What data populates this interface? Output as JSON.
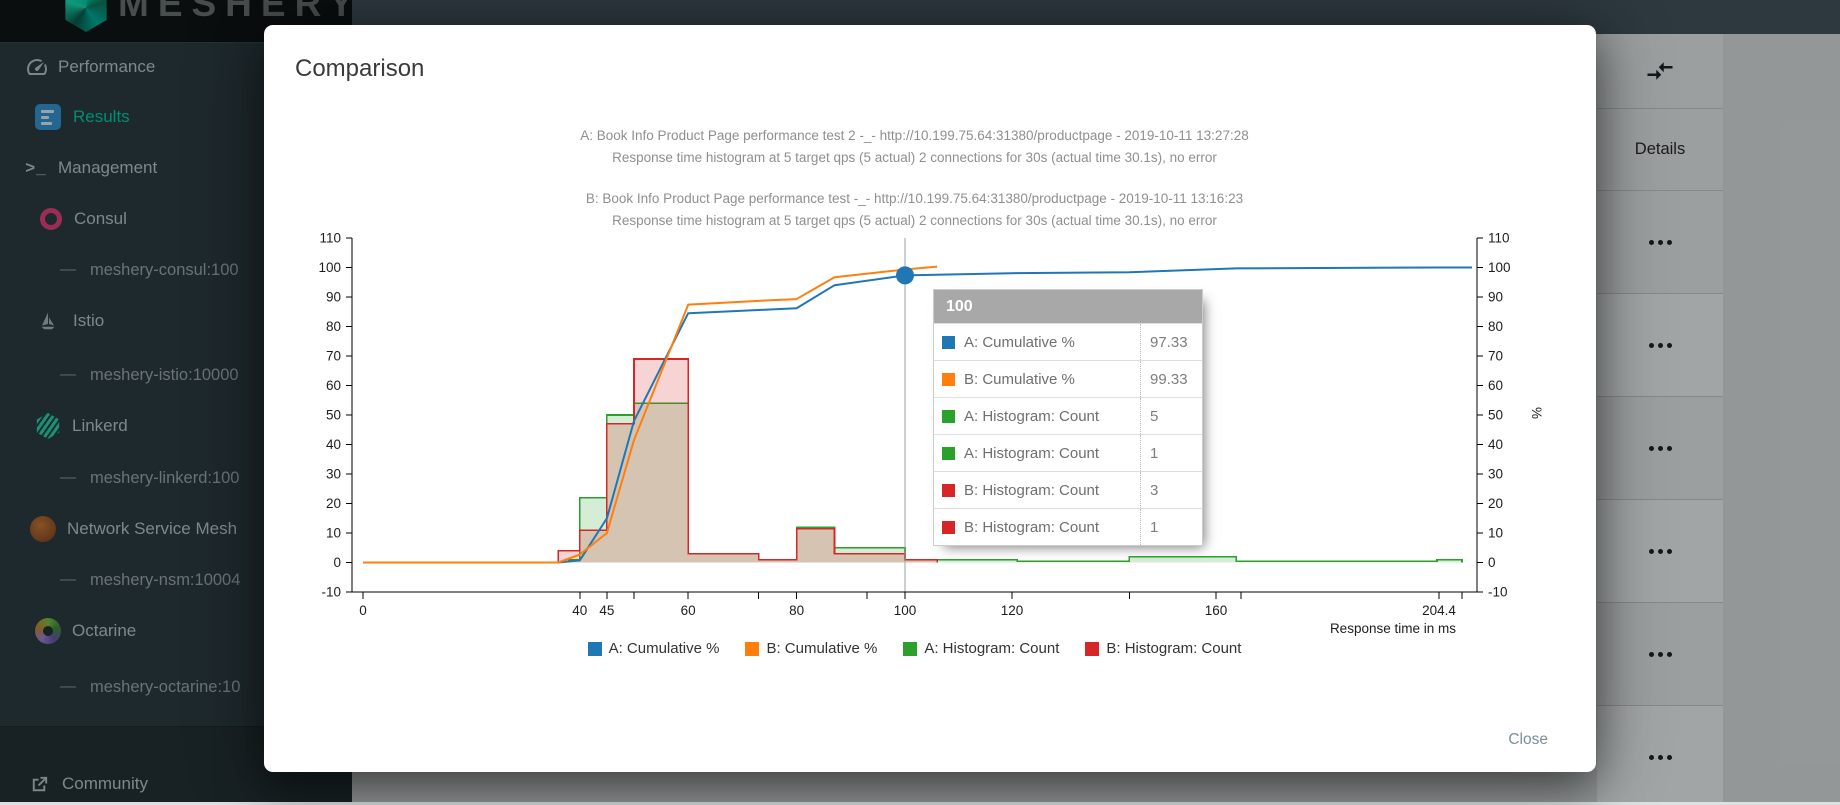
{
  "app": {
    "logo_text": "MESHERY"
  },
  "sidebar": {
    "items": [
      {
        "label": "Performance",
        "icon": "gauge-icon",
        "level": 0,
        "active": false
      },
      {
        "label": "Results",
        "icon": "results-icon",
        "level": 1,
        "active": true
      },
      {
        "label": "Management",
        "icon": "terminal-icon",
        "level": 0,
        "active": false
      },
      {
        "label": "Consul",
        "icon": "consul-icon",
        "level": 0,
        "active": false
      },
      {
        "label": "meshery-consul:100",
        "icon": "dash",
        "level": 1,
        "active": false
      },
      {
        "label": "Istio",
        "icon": "istio-sailboat-icon",
        "level": 0,
        "active": false
      },
      {
        "label": "meshery-istio:10000",
        "icon": "dash",
        "level": 1,
        "active": false
      },
      {
        "label": "Linkerd",
        "icon": "linkerd-icon",
        "level": 0,
        "active": false
      },
      {
        "label": "meshery-linkerd:100",
        "icon": "dash",
        "level": 1,
        "active": false
      },
      {
        "label": "Network Service Mesh",
        "icon": "nsm-icon",
        "level": 0,
        "active": false
      },
      {
        "label": "meshery-nsm:10004",
        "icon": "dash",
        "level": 1,
        "active": false
      },
      {
        "label": "Octarine",
        "icon": "octarine-icon",
        "level": 0,
        "active": false
      },
      {
        "label": "meshery-octarine:10",
        "icon": "dash",
        "level": 1,
        "active": false
      }
    ],
    "footer": {
      "label": "Community",
      "icon": "external-link-icon"
    },
    "terminal_glyph": ">_"
  },
  "table": {
    "details_header": "Details",
    "visible_rows": 6
  },
  "modal": {
    "title": "Comparison",
    "close_label": "Close"
  },
  "chart_data": {
    "type": "combo",
    "titles": [
      "A: Book Info Product Page performance test 2 -_- http://10.199.75.64:31380/productpage - 2019-10-11 13:27:28",
      "Response time histogram at 5 target qps (5 actual) 2 connections for 30s (actual time 30.1s), no error",
      "B: Book Info Product Page performance test -_- http://10.199.75.64:31380/productpage - 2019-10-11 13:16:23",
      "Response time histogram at 5 target qps (5 actual) 2 connections for 30s (actual time 30.1s), no error"
    ],
    "xlabel": "Response time in ms",
    "ylabel_right": "%",
    "y_ticks": [
      -10,
      0,
      10,
      20,
      30,
      40,
      50,
      60,
      70,
      80,
      90,
      100,
      110
    ],
    "ylim": [
      -10,
      110
    ],
    "x_ticks_labeled": [
      0,
      40,
      45,
      60,
      80,
      100,
      120,
      160,
      204.4
    ],
    "x_ticks_unlabeled": [
      50,
      73,
      93,
      143,
      165,
      209
    ],
    "xlim": [
      0,
      212
    ],
    "grid": false,
    "crosshair_x": 100,
    "marker": {
      "series": "A: Cumulative %",
      "x": 100,
      "y": 97.33
    },
    "series": [
      {
        "name": "A: Cumulative %",
        "type": "line",
        "color": "#1f77b4",
        "points": [
          [
            0,
            0
          ],
          [
            36,
            0
          ],
          [
            40,
            0.7
          ],
          [
            45,
            15
          ],
          [
            50,
            48
          ],
          [
            60,
            84.5
          ],
          [
            73,
            85.6
          ],
          [
            80,
            86.2
          ],
          [
            87,
            94
          ],
          [
            100,
            97.33
          ],
          [
            121,
            98.1
          ],
          [
            143,
            98.4
          ],
          [
            164,
            99.7
          ],
          [
            204.4,
            100
          ],
          [
            211,
            100
          ]
        ]
      },
      {
        "name": "B: Cumulative %",
        "type": "line",
        "color": "#ff7f0e",
        "points": [
          [
            0,
            0
          ],
          [
            36,
            0
          ],
          [
            40,
            2.7
          ],
          [
            45,
            10
          ],
          [
            50,
            41.5
          ],
          [
            60,
            87.4
          ],
          [
            73,
            88.7
          ],
          [
            80,
            89.3
          ],
          [
            87,
            96.7
          ],
          [
            100,
            99.33
          ],
          [
            106,
            100.3
          ]
        ]
      },
      {
        "name": "A: Histogram: Count",
        "type": "step-area",
        "color": "#2ca02c",
        "bins": [
          {
            "from": 38,
            "to": 40,
            "count": 1
          },
          {
            "from": 40,
            "to": 45,
            "count": 22
          },
          {
            "from": 45,
            "to": 50,
            "count": 50
          },
          {
            "from": 50,
            "to": 60,
            "count": 54
          },
          {
            "from": 60,
            "to": 73,
            "count": 3
          },
          {
            "from": 73,
            "to": 80,
            "count": 1
          },
          {
            "from": 80,
            "to": 87,
            "count": 12
          },
          {
            "from": 87,
            "to": 100,
            "count": 5
          },
          {
            "from": 100,
            "to": 121,
            "count": 1
          },
          {
            "from": 121,
            "to": 143,
            "count": 0.4
          },
          {
            "from": 143,
            "to": 164,
            "count": 2
          },
          {
            "from": 164,
            "to": 204,
            "count": 0.4
          },
          {
            "from": 204,
            "to": 209,
            "count": 1
          }
        ]
      },
      {
        "name": "B: Histogram: Count",
        "type": "step-area",
        "color": "#d62728",
        "bins": [
          {
            "from": 36,
            "to": 40,
            "count": 4
          },
          {
            "from": 40,
            "to": 45,
            "count": 11
          },
          {
            "from": 45,
            "to": 50,
            "count": 47
          },
          {
            "from": 50,
            "to": 60,
            "count": 69
          },
          {
            "from": 60,
            "to": 73,
            "count": 3
          },
          {
            "from": 73,
            "to": 80,
            "count": 1
          },
          {
            "from": 80,
            "to": 87,
            "count": 11.5
          },
          {
            "from": 87,
            "to": 100,
            "count": 3
          },
          {
            "from": 100,
            "to": 106,
            "count": 1
          }
        ]
      }
    ],
    "legend": [
      {
        "label": "A: Cumulative %",
        "color": "#1f77b4"
      },
      {
        "label": "B: Cumulative %",
        "color": "#ff7f0e"
      },
      {
        "label": "A: Histogram: Count",
        "color": "#2ca02c"
      },
      {
        "label": "B: Histogram: Count",
        "color": "#d62728"
      }
    ],
    "tooltip": {
      "title": "100",
      "rows": [
        {
          "color": "#1f77b4",
          "label": "A: Cumulative %",
          "value": "97.33"
        },
        {
          "color": "#ff7f0e",
          "label": "B: Cumulative %",
          "value": "99.33"
        },
        {
          "color": "#2ca02c",
          "label": "A: Histogram: Count",
          "value": "5"
        },
        {
          "color": "#2ca02c",
          "label": "A: Histogram: Count",
          "value": "1"
        },
        {
          "color": "#d62728",
          "label": "B: Histogram: Count",
          "value": "3"
        },
        {
          "color": "#d62728",
          "label": "B: Histogram: Count",
          "value": "1"
        }
      ]
    }
  }
}
